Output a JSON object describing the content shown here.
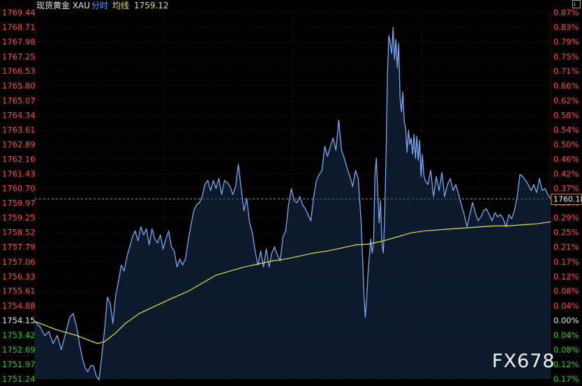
{
  "header": {
    "instrument": "现货黄金 XAU",
    "mode": "分时",
    "avg_label": "均线",
    "avg_value": "1759.12"
  },
  "watermark": "FX678",
  "colors": {
    "price_line": "#7aa9f0",
    "avg_line": "#e8e04a",
    "up": "#ff4d4d",
    "down": "#33cc33",
    "neutral": "#e6e6e6",
    "grid": "#3a0d0d",
    "ref_line": "#d9884a"
  },
  "chart_data": {
    "type": "line",
    "reference_price": 1754.15,
    "current_price": "1760.18",
    "ylim": [
      1751.24,
      1769.44
    ],
    "y_ticks": [
      "1769.44",
      "1768.71",
      "1767.98",
      "1767.25",
      "1766.53",
      "1765.80",
      "1765.07",
      "1764.34",
      "1763.61",
      "1762.89",
      "1762.16",
      "1761.43",
      "1760.70",
      "1759.97",
      "1759.25",
      "1758.52",
      "1757.79",
      "1757.06",
      "1756.33",
      "1755.61",
      "1754.88",
      "1754.15",
      "1753.42",
      "1752.69",
      "1751.97",
      "1751.24"
    ],
    "pct_ticks": [
      "0.87%",
      "0.83%",
      "0.79%",
      "0.75%",
      "0.71%",
      "0.66%",
      "0.62%",
      "0.58%",
      "0.54%",
      "0.50%",
      "0.46%",
      "0.42%",
      "0.37%",
      "0.33%",
      "0.29%",
      "0.25%",
      "0.21%",
      "0.17%",
      "0.12%",
      "0.08%",
      "0.04%",
      "0.00%",
      "0.04%",
      "0.08%",
      "0.12%",
      "0.17%"
    ],
    "x_range": [
      0,
      740
    ],
    "series": [
      {
        "role": "price",
        "points": [
          [
            0,
            1754.1
          ],
          [
            8,
            1753.8
          ],
          [
            14,
            1753.4
          ],
          [
            20,
            1753.6
          ],
          [
            26,
            1753.0
          ],
          [
            32,
            1753.4
          ],
          [
            38,
            1752.7
          ],
          [
            44,
            1753.5
          ],
          [
            50,
            1754.3
          ],
          [
            55,
            1754.5
          ],
          [
            60,
            1753.8
          ],
          [
            64,
            1753.0
          ],
          [
            68,
            1752.3
          ],
          [
            72,
            1751.8
          ],
          [
            76,
            1751.6
          ],
          [
            80,
            1751.9
          ],
          [
            84,
            1751.9
          ],
          [
            88,
            1751.4
          ],
          [
            92,
            1751.2
          ],
          [
            96,
            1752.4
          ],
          [
            100,
            1753.7
          ],
          [
            104,
            1755.3
          ],
          [
            108,
            1755.0
          ],
          [
            112,
            1754.0
          ],
          [
            116,
            1755.4
          ],
          [
            120,
            1756.1
          ],
          [
            124,
            1756.9
          ],
          [
            128,
            1756.6
          ],
          [
            132,
            1757.3
          ],
          [
            136,
            1757.8
          ],
          [
            140,
            1758.3
          ],
          [
            144,
            1758.6
          ],
          [
            148,
            1758.1
          ],
          [
            152,
            1758.8
          ],
          [
            156,
            1758.4
          ],
          [
            160,
            1758.7
          ],
          [
            164,
            1757.9
          ],
          [
            168,
            1758.7
          ],
          [
            172,
            1758.2
          ],
          [
            176,
            1758.0
          ],
          [
            180,
            1758.4
          ],
          [
            184,
            1757.7
          ],
          [
            188,
            1758.2
          ],
          [
            192,
            1758.6
          ],
          [
            196,
            1757.8
          ],
          [
            200,
            1757.6
          ],
          [
            204,
            1756.8
          ],
          [
            208,
            1757.2
          ],
          [
            212,
            1756.9
          ],
          [
            216,
            1757.2
          ],
          [
            220,
            1758.1
          ],
          [
            224,
            1758.9
          ],
          [
            228,
            1759.6
          ],
          [
            232,
            1759.9
          ],
          [
            236,
            1760.0
          ],
          [
            240,
            1760.3
          ],
          [
            244,
            1760.9
          ],
          [
            248,
            1761.1
          ],
          [
            252,
            1760.6
          ],
          [
            256,
            1761.1
          ],
          [
            260,
            1760.7
          ],
          [
            264,
            1761.2
          ],
          [
            268,
            1760.4
          ],
          [
            272,
            1761.1
          ],
          [
            276,
            1761.0
          ],
          [
            280,
            1760.8
          ],
          [
            284,
            1760.4
          ],
          [
            288,
            1760.8
          ],
          [
            292,
            1761.9
          ],
          [
            296,
            1760.7
          ],
          [
            300,
            1759.6
          ],
          [
            304,
            1760.2
          ],
          [
            308,
            1759.0
          ],
          [
            312,
            1758.5
          ],
          [
            316,
            1757.6
          ],
          [
            320,
            1756.9
          ],
          [
            324,
            1757.6
          ],
          [
            328,
            1756.8
          ],
          [
            332,
            1757.7
          ],
          [
            336,
            1756.8
          ],
          [
            340,
            1757.5
          ],
          [
            344,
            1757.8
          ],
          [
            348,
            1757.4
          ],
          [
            352,
            1757.1
          ],
          [
            356,
            1758.3
          ],
          [
            360,
            1758.6
          ],
          [
            364,
            1759.9
          ],
          [
            368,
            1760.7
          ],
          [
            372,
            1760.1
          ],
          [
            376,
            1760.0
          ],
          [
            380,
            1760.3
          ],
          [
            384,
            1759.9
          ],
          [
            388,
            1759.7
          ],
          [
            392,
            1759.4
          ],
          [
            396,
            1759.1
          ],
          [
            400,
            1760.3
          ],
          [
            404,
            1761.1
          ],
          [
            408,
            1761.4
          ],
          [
            412,
            1761.6
          ],
          [
            416,
            1762.8
          ],
          [
            420,
            1762.3
          ],
          [
            424,
            1762.8
          ],
          [
            428,
            1763.2
          ],
          [
            432,
            1762.6
          ],
          [
            436,
            1764.1
          ],
          [
            440,
            1762.6
          ],
          [
            444,
            1762.2
          ],
          [
            448,
            1761.7
          ],
          [
            452,
            1761.3
          ],
          [
            456,
            1760.8
          ],
          [
            460,
            1761.6
          ],
          [
            464,
            1761.2
          ],
          [
            468,
            1759.1
          ],
          [
            470,
            1757.4
          ],
          [
            472,
            1755.6
          ],
          [
            474,
            1754.3
          ],
          [
            476,
            1755.2
          ],
          [
            478,
            1756.5
          ],
          [
            480,
            1757.4
          ],
          [
            482,
            1758.2
          ],
          [
            484,
            1757.5
          ],
          [
            486,
            1758.0
          ],
          [
            488,
            1761.4
          ],
          [
            490,
            1762.2
          ],
          [
            492,
            1760.5
          ],
          [
            494,
            1759.0
          ],
          [
            496,
            1760.1
          ],
          [
            498,
            1758.0
          ],
          [
            500,
            1757.5
          ],
          [
            502,
            1759.4
          ],
          [
            504,
            1762.5
          ],
          [
            506,
            1766.5
          ],
          [
            508,
            1768.3
          ],
          [
            510,
            1767.9
          ],
          [
            512,
            1767.4
          ],
          [
            514,
            1768.7
          ],
          [
            516,
            1767.1
          ],
          [
            518,
            1768.1
          ],
          [
            520,
            1766.7
          ],
          [
            522,
            1767.9
          ],
          [
            524,
            1765.2
          ],
          [
            526,
            1764.5
          ],
          [
            528,
            1765.5
          ],
          [
            530,
            1764.0
          ],
          [
            532,
            1763.7
          ],
          [
            534,
            1762.5
          ],
          [
            536,
            1763.6
          ],
          [
            538,
            1762.9
          ],
          [
            540,
            1763.2
          ],
          [
            542,
            1762.4
          ],
          [
            544,
            1763.4
          ],
          [
            546,
            1762.2
          ],
          [
            548,
            1763.3
          ],
          [
            550,
            1762.1
          ],
          [
            552,
            1763.1
          ],
          [
            554,
            1761.3
          ],
          [
            556,
            1762.4
          ],
          [
            558,
            1761.4
          ],
          [
            560,
            1761.1
          ],
          [
            564,
            1760.9
          ],
          [
            568,
            1761.6
          ],
          [
            572,
            1760.3
          ],
          [
            576,
            1761.3
          ],
          [
            580,
            1760.6
          ],
          [
            584,
            1761.5
          ],
          [
            588,
            1760.3
          ],
          [
            592,
            1760.9
          ],
          [
            596,
            1761.2
          ],
          [
            600,
            1760.6
          ],
          [
            604,
            1760.9
          ],
          [
            608,
            1760.4
          ],
          [
            612,
            1759.9
          ],
          [
            616,
            1759.4
          ],
          [
            620,
            1758.8
          ],
          [
            624,
            1759.4
          ],
          [
            628,
            1760.0
          ],
          [
            632,
            1759.5
          ],
          [
            636,
            1759.1
          ],
          [
            640,
            1759.3
          ],
          [
            644,
            1759.6
          ],
          [
            648,
            1759.7
          ],
          [
            652,
            1759.4
          ],
          [
            656,
            1759.1
          ],
          [
            660,
            1759.5
          ],
          [
            664,
            1759.3
          ],
          [
            668,
            1759.4
          ],
          [
            672,
            1759.2
          ],
          [
            676,
            1758.8
          ],
          [
            680,
            1759.4
          ],
          [
            684,
            1759.2
          ],
          [
            688,
            1759.6
          ],
          [
            692,
            1760.3
          ],
          [
            696,
            1761.4
          ],
          [
            700,
            1761.3
          ],
          [
            704,
            1761.1
          ],
          [
            708,
            1760.9
          ],
          [
            712,
            1760.6
          ],
          [
            716,
            1760.9
          ],
          [
            720,
            1760.5
          ],
          [
            724,
            1761.2
          ],
          [
            728,
            1760.6
          ],
          [
            732,
            1760.7
          ],
          [
            736,
            1760.4
          ],
          [
            740,
            1760.2
          ]
        ]
      },
      {
        "role": "average",
        "points": [
          [
            0,
            1754.1
          ],
          [
            30,
            1753.7
          ],
          [
            60,
            1753.4
          ],
          [
            75,
            1753.2
          ],
          [
            90,
            1753.0
          ],
          [
            100,
            1753.1
          ],
          [
            115,
            1753.5
          ],
          [
            130,
            1754.0
          ],
          [
            150,
            1754.5
          ],
          [
            175,
            1754.9
          ],
          [
            200,
            1755.3
          ],
          [
            220,
            1755.6
          ],
          [
            240,
            1756.0
          ],
          [
            260,
            1756.4
          ],
          [
            280,
            1756.6
          ],
          [
            300,
            1756.8
          ],
          [
            320,
            1756.95
          ],
          [
            340,
            1757.1
          ],
          [
            360,
            1757.2
          ],
          [
            380,
            1757.35
          ],
          [
            400,
            1757.5
          ],
          [
            420,
            1757.6
          ],
          [
            440,
            1757.75
          ],
          [
            460,
            1757.9
          ],
          [
            480,
            1757.95
          ],
          [
            500,
            1758.1
          ],
          [
            520,
            1758.3
          ],
          [
            540,
            1758.5
          ],
          [
            560,
            1758.6
          ],
          [
            580,
            1758.65
          ],
          [
            600,
            1758.7
          ],
          [
            620,
            1758.75
          ],
          [
            640,
            1758.8
          ],
          [
            660,
            1758.85
          ],
          [
            680,
            1758.85
          ],
          [
            700,
            1758.9
          ],
          [
            720,
            1758.95
          ],
          [
            740,
            1759.05
          ]
        ]
      }
    ]
  }
}
